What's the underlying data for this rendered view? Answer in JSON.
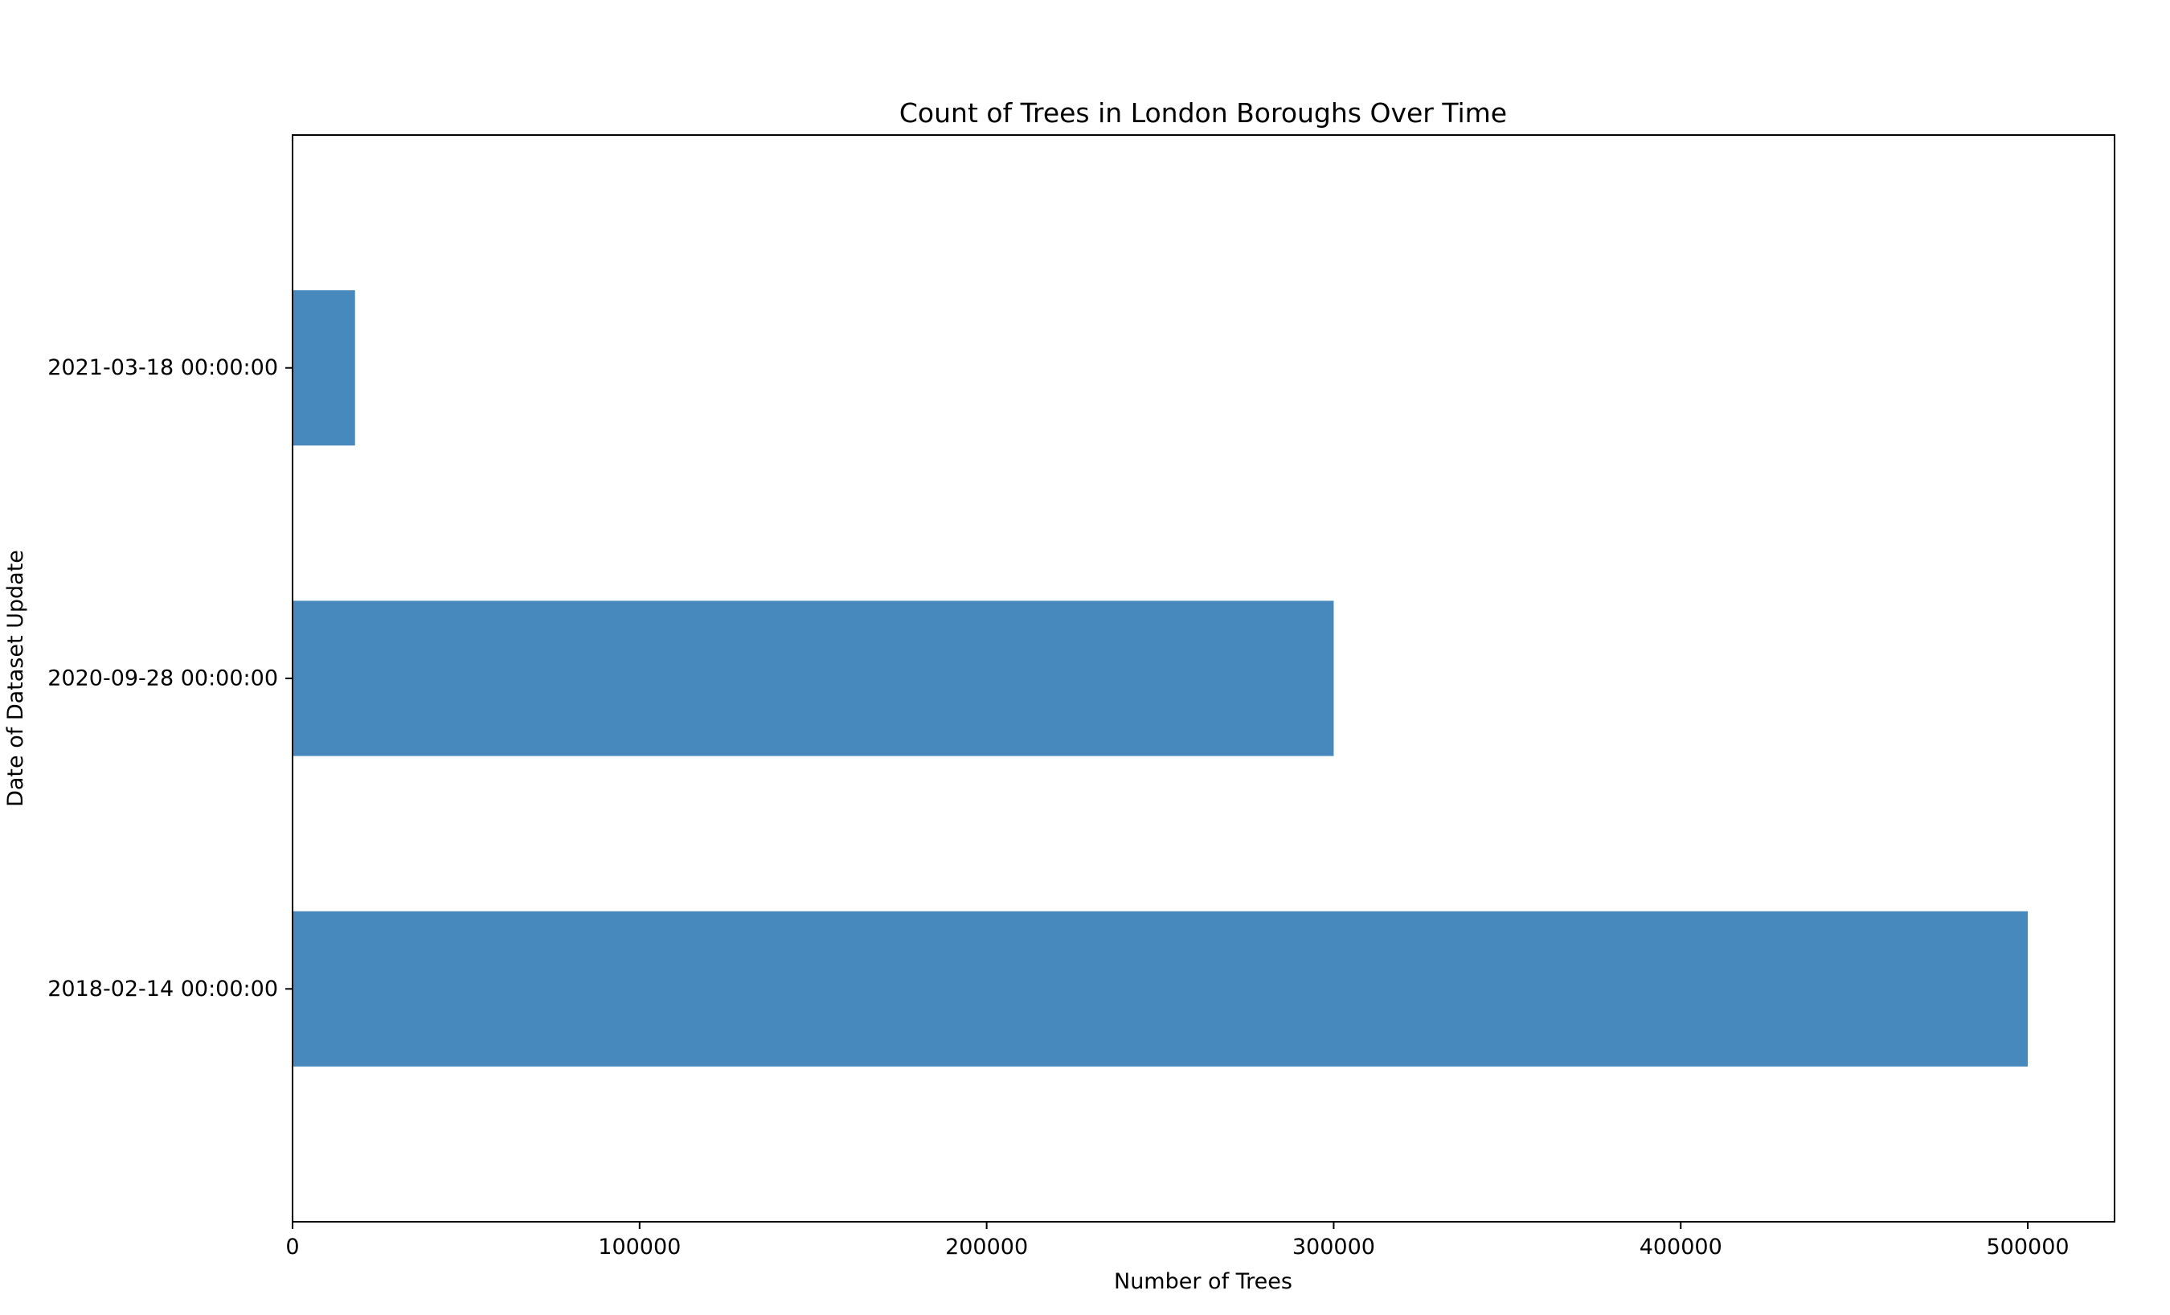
{
  "chart_data": {
    "type": "bar",
    "orientation": "horizontal",
    "title": "Count of Trees in London Boroughs Over Time",
    "xlabel": "Number of Trees",
    "ylabel": "Date of Dataset Update",
    "categories": [
      "2018-02-14 00:00:00",
      "2020-09-28 00:00:00",
      "2021-03-18 00:00:00"
    ],
    "values": [
      500000,
      300000,
      18000
    ],
    "xlim": [
      0,
      525000
    ],
    "xticks": [
      0,
      100000,
      200000,
      300000,
      400000,
      500000
    ],
    "xtick_labels": [
      "0",
      "100000",
      "200000",
      "300000",
      "400000",
      "500000"
    ],
    "grid": false,
    "colors": {
      "bar": "#4789bc",
      "axes": "#000000",
      "background": "#ffffff"
    }
  }
}
